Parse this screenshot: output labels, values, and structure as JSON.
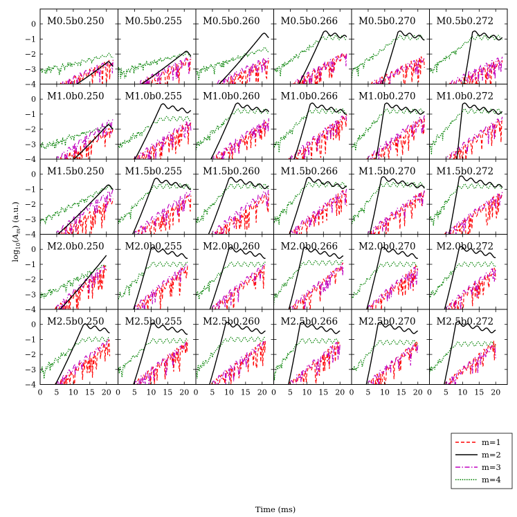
{
  "chart_data": {
    "type": "line",
    "xlabel": "Time (ms)",
    "ylabel_prefix": "log",
    "ylabel_sub": "10",
    "ylabel_mid": "(",
    "ylabel_var": "A",
    "ylabel_var_sub": "m",
    "ylabel_suffix": ") (a.u.)",
    "xlim": [
      0,
      23.5
    ],
    "ylim": [
      -4,
      1
    ],
    "x_ticks": [
      "0",
      "5",
      "10",
      "15",
      "20"
    ],
    "y_ticks": [
      "0",
      "−1",
      "−2",
      "−3",
      "−4"
    ],
    "y_tick_values": [
      0,
      -1,
      -2,
      -3,
      -4
    ],
    "x_tick_values": [
      0,
      5,
      10,
      15,
      20
    ],
    "legend_position": "lower-right",
    "series": [
      {
        "name": "m=1",
        "color": "#ff0000",
        "style": "dashed"
      },
      {
        "name": "m=2",
        "color": "#000000",
        "style": "solid"
      },
      {
        "name": "m=3",
        "color": "#bf00bf",
        "style": "dashdot"
      },
      {
        "name": "m=4",
        "color": "#008000",
        "style": "dotted"
      }
    ],
    "rows": [
      "M0.5",
      "M1.0",
      "M1.5",
      "M2.0",
      "M2.5"
    ],
    "cols": [
      "b0.250",
      "b0.255",
      "b0.260",
      "b0.266",
      "b0.270",
      "b0.272"
    ],
    "panels": [
      [
        "M0.5b0.250",
        "M0.5b0.255",
        "M0.5b0.260",
        "M0.5b0.266",
        "M0.5b0.270",
        "M0.5b0.272"
      ],
      [
        "M1.0b0.250",
        "M1.0b0.255",
        "M1.0b0.260",
        "M1.0b0.266",
        "M1.0b0.270",
        "M1.0b0.272"
      ],
      [
        "M1.5b0.250",
        "M1.5b0.255",
        "M1.5b0.260",
        "M1.5b0.266",
        "M1.5b0.270",
        "M1.5b0.272"
      ],
      [
        "M2.0b0.250",
        "M2.0b0.255",
        "M2.0b0.260",
        "M2.0b0.266",
        "M2.0b0.270",
        "M2.0b0.272"
      ],
      [
        "M2.5b0.250",
        "M2.5b0.255",
        "M2.5b0.260",
        "M2.5b0.266",
        "M2.5b0.270",
        "M2.5b0.272"
      ]
    ],
    "m2_onset_ms": [
      [
        8.0,
        4.0,
        5.0,
        6.5,
        8.5,
        10.0
      ],
      [
        8.0,
        4.0,
        3.5,
        5.5,
        7.0,
        8.0
      ],
      [
        3.0,
        3.5,
        3.0,
        4.0,
        5.0,
        5.5
      ],
      [
        4.0,
        4.0,
        3.5,
        4.0,
        4.0,
        4.0
      ],
      [
        3.5,
        4.0,
        3.5,
        4.0,
        4.0,
        4.0
      ]
    ],
    "m2_peak_log": [
      [
        -2.6,
        -1.9,
        -0.7,
        -0.55,
        -0.55,
        -0.55
      ],
      [
        -1.8,
        -0.4,
        -0.35,
        -0.35,
        -0.35,
        -0.35
      ],
      [
        -0.8,
        -0.35,
        -0.3,
        -0.3,
        -0.25,
        -0.2
      ],
      [
        -0.4,
        0.05,
        0.05,
        0.05,
        0.05,
        0.1
      ],
      [
        -0.05,
        0.0,
        0.05,
        0.05,
        0.05,
        0.1
      ]
    ],
    "m2_peak_time_ms": [
      [
        20,
        20,
        20,
        15,
        14,
        13
      ],
      [
        20,
        13,
        12,
        11,
        10,
        10
      ],
      [
        20,
        11,
        10,
        10,
        9,
        9
      ],
      [
        20,
        10,
        10,
        9,
        9,
        9
      ],
      [
        13,
        10,
        9,
        8,
        8,
        8
      ]
    ],
    "m4_plateau_log": [
      [
        -2.1,
        -2.0,
        -1.7,
        -0.9,
        -0.9,
        -0.9
      ],
      [
        -1.8,
        -1.3,
        -0.8,
        -0.8,
        -0.8,
        -0.8
      ],
      [
        -0.9,
        -0.8,
        -0.8,
        -0.7,
        -0.7,
        -0.8
      ],
      [
        -1.0,
        -1.0,
        -1.0,
        -0.9,
        -1.0,
        -1.0
      ],
      [
        -1.0,
        -1.1,
        -1.0,
        -1.1,
        -1.2,
        -1.3
      ]
    ],
    "m1_end_log": [
      [
        -2.5,
        -2.4,
        -2.5,
        -2.0,
        -2.2,
        -2.5
      ],
      [
        -2.0,
        -1.6,
        -1.5,
        -1.1,
        -1.3,
        -1.4
      ],
      [
        -1.7,
        -1.5,
        -1.4,
        -1.1,
        -1.2,
        -1.3
      ],
      [
        -1.2,
        -1.2,
        -1.2,
        -1.1,
        -1.2,
        -1.3
      ],
      [
        -1.2,
        -1.2,
        -1.2,
        -1.2,
        -1.2,
        -1.2
      ]
    ],
    "m3_end_log": [
      [
        -2.5,
        -2.3,
        -2.3,
        -2.0,
        -2.3,
        -2.3
      ],
      [
        -1.4,
        -1.5,
        -1.4,
        -1.1,
        -1.2,
        -1.3
      ],
      [
        -1.1,
        -1.2,
        -1.1,
        -1.1,
        -1.2,
        -1.3
      ],
      [
        -1.1,
        -1.1,
        -1.1,
        -1.1,
        -1.2,
        -1.3
      ],
      [
        -1.1,
        -1.3,
        -1.2,
        -1.2,
        -1.3,
        -1.4
      ]
    ],
    "end_time_ms": [
      [
        22,
        22,
        22,
        22,
        22,
        22
      ],
      [
        22,
        22,
        22,
        22,
        22,
        22
      ],
      [
        22,
        22,
        22,
        22,
        22,
        22
      ],
      [
        20,
        21,
        21,
        21,
        20,
        20
      ],
      [
        21,
        21,
        21,
        20,
        20,
        20
      ]
    ]
  }
}
